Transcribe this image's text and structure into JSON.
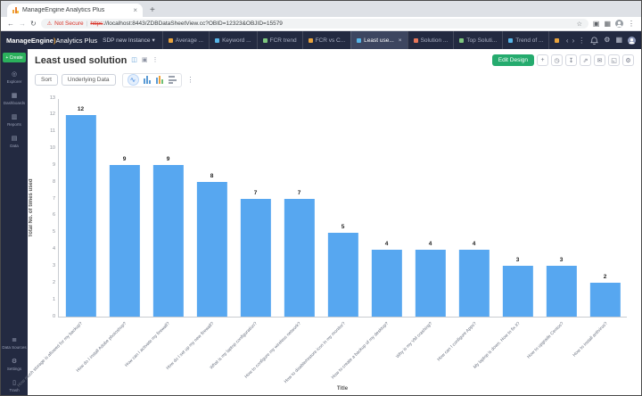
{
  "browser": {
    "tab_title": "ManageEngine Analytics Plus",
    "not_secure": "Not Secure",
    "url_scheme": "https",
    "url_rest": "://localhost:8443/ZDBDataSheetView.cc?OBID=12323&OBJID=15579"
  },
  "icons": {
    "back": "←",
    "forward": "→",
    "reload": "↻",
    "warning": "⚠",
    "star": "☆",
    "extensions": "▣",
    "apps_grid": "▦",
    "menu_dots": "⋮",
    "new_tab": "+",
    "tab_close": "×",
    "workspace_caret": "▾",
    "overflow_left": "‹",
    "overflow_right": "›",
    "gear": "⚙",
    "view_toggle": "◫",
    "copy": "▣",
    "spline": "∿"
  },
  "app_header": {
    "brand": "ManageEngine",
    "paren": ")",
    "product": "Analytics Plus",
    "workspace": "SDP new Instance",
    "tabs": [
      {
        "label": "Average ...",
        "icon_color": "#e8a33d"
      },
      {
        "label": "Keyword ...",
        "icon_color": "#57b5e8"
      },
      {
        "label": "FCR trend",
        "icon_color": "#7ec77e"
      },
      {
        "label": "FCR vs C...",
        "icon_color": "#e8a33d"
      },
      {
        "label": "Least use...",
        "icon_color": "#57b5e8",
        "active": true
      },
      {
        "label": "Solution ...",
        "icon_color": "#e8775a"
      },
      {
        "label": "Top Soluti...",
        "icon_color": "#7ec77e"
      },
      {
        "label": "Trend of ...",
        "icon_color": "#57b5e8"
      },
      {
        "label": "Av",
        "icon_color": "#e8a33d"
      }
    ]
  },
  "sidebar": {
    "create_label": "+ Create",
    "items_top": [
      {
        "label": "Explorer",
        "icon": "◎"
      },
      {
        "label": "Dashboards",
        "icon": "▦"
      },
      {
        "label": "Reports",
        "icon": "▥"
      },
      {
        "label": "Data",
        "icon": "▤"
      }
    ],
    "items_bottom": [
      {
        "label": "Data Sources",
        "icon": "≣"
      },
      {
        "label": "Settings",
        "icon": "⚙"
      },
      {
        "label": "Trash",
        "icon": "▯"
      }
    ]
  },
  "report": {
    "title": "Least used solution",
    "edit_design_label": "Edit Design",
    "sort_label": "Sort",
    "underlying_data_label": "Underlying Data",
    "actions": [
      {
        "name": "add",
        "glyph": "+"
      },
      {
        "name": "history",
        "glyph": "◷"
      },
      {
        "name": "download",
        "glyph": "↧"
      },
      {
        "name": "share",
        "glyph": "⇗"
      },
      {
        "name": "publish",
        "glyph": "✉"
      },
      {
        "name": "fullscreen",
        "glyph": "◱"
      },
      {
        "name": "settings",
        "glyph": "⚙"
      }
    ]
  },
  "chart_data": {
    "type": "bar",
    "title": "Least used solution",
    "xlabel": "Title",
    "ylabel": "Total No. of times used",
    "ylim": [
      0,
      13
    ],
    "y_tick_step": 1,
    "grid": false,
    "legend": "none",
    "bar_color": "#57a7f0",
    "categories": [
      "How much storage is allowed for my backup?",
      "How do I install Adobe photoshop?",
      "How can I activate my firewall?",
      "How do I set up my new firewall?",
      "What is my laptop configuration?",
      "How to configure my wireless network?",
      "How to disable/restore icon in my monitor?",
      "How to create a backup of my desktop?",
      "Why is my VM crashing?",
      "How can I configure Apps?",
      "My laptop is down. How to fix it?",
      "How to upgrade Centos?",
      "How to install antivirus?"
    ],
    "values": [
      12,
      9,
      9,
      8,
      7,
      7,
      5,
      4,
      4,
      4,
      3,
      3,
      2
    ]
  }
}
